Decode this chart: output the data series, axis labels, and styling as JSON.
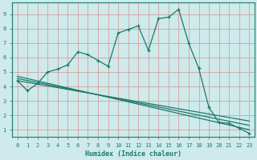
{
  "xlabel": "Humidex (Indice chaleur)",
  "bg_color": "#ceeaea",
  "line_color": "#1a7a6e",
  "grid_color": "#d4a0a0",
  "xlim": [
    -0.5,
    23.5
  ],
  "ylim": [
    0.5,
    9.8
  ],
  "xticks": [
    0,
    1,
    2,
    3,
    4,
    5,
    6,
    7,
    8,
    9,
    10,
    11,
    12,
    13,
    14,
    15,
    16,
    17,
    18,
    19,
    20,
    21,
    22,
    23
  ],
  "yticks": [
    1,
    2,
    3,
    4,
    5,
    6,
    7,
    8,
    9
  ],
  "curve1_x": [
    0,
    1,
    2,
    3,
    4,
    5,
    6,
    7,
    8,
    9,
    10,
    11,
    12,
    13,
    14,
    15,
    16,
    17,
    18,
    19,
    20,
    21,
    22,
    23
  ],
  "curve1_y": [
    4.4,
    3.7,
    4.2,
    5.0,
    5.2,
    5.5,
    6.4,
    6.2,
    5.8,
    5.4,
    7.7,
    7.95,
    8.2,
    6.5,
    8.7,
    8.8,
    9.35,
    7.0,
    5.25,
    2.55,
    1.5,
    1.45,
    1.1,
    0.75
  ],
  "line2_x": [
    0,
    23
  ],
  "line2_y": [
    4.7,
    1.0
  ],
  "line3_x": [
    0,
    23
  ],
  "line3_y": [
    4.55,
    1.3
  ],
  "line4_x": [
    0,
    23
  ],
  "line4_y": [
    4.4,
    1.6
  ],
  "marker_size": 2.5,
  "line_width": 0.9,
  "tick_fontsize": 5.0,
  "xlabel_fontsize": 6.0
}
